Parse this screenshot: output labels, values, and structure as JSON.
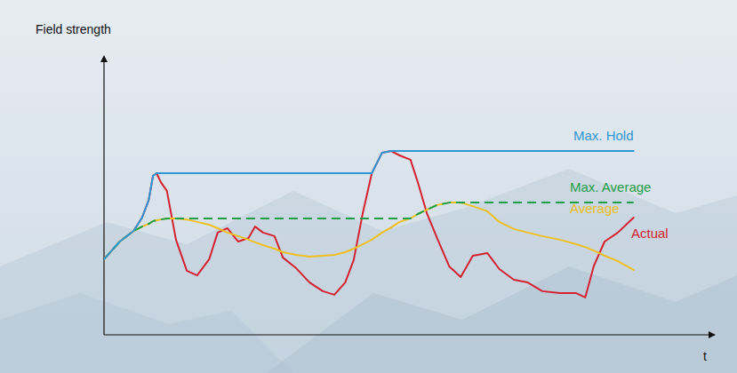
{
  "chart_data": {
    "type": "line",
    "x_label": "t",
    "y_label": "Field strength",
    "tick_labels": false,
    "grid": false,
    "xlim": [
      0,
      100
    ],
    "ylim": [
      0,
      100
    ],
    "x": [
      0,
      2.6,
      4.9,
      6.3,
      7.4,
      8.1,
      8.7,
      9.4,
      10.4,
      11.9,
      13.7,
      15.4,
      17.4,
      18.8,
      20.4,
      22.2,
      23.9,
      25.0,
      26.3,
      28.2,
      29.6,
      31.8,
      34.0,
      36.2,
      38.1,
      39.9,
      41.3,
      42.8,
      44.3,
      46.0,
      47.5,
      48.9,
      50.7,
      51.9,
      53.4,
      55.1,
      57.1,
      59.0,
      61.0,
      63.4,
      65.4,
      67.8,
      70.1,
      72.5,
      75.4,
      78.1,
      79.6,
      81.0,
      82.8,
      85.0,
      87.6
    ],
    "series": [
      {
        "name": "Actual",
        "color": "#d42230",
        "line_style": "solid",
        "values": [
          27.7,
          34.2,
          38.1,
          43.0,
          49.5,
          58.3,
          59.3,
          56.0,
          52.8,
          34.9,
          23.5,
          21.8,
          27.7,
          37.5,
          39.1,
          34.2,
          35.5,
          39.7,
          37.5,
          36.2,
          28.3,
          24.4,
          19.2,
          16.0,
          14.7,
          19.2,
          27.4,
          44.6,
          59.3,
          66.8,
          67.4,
          65.8,
          64.2,
          56.0,
          44.6,
          35.5,
          25.1,
          21.2,
          29.0,
          30.0,
          24.1,
          20.2,
          19.2,
          16.0,
          15.3,
          15.3,
          13.7,
          25.1,
          34.2,
          37.5,
          43.0
        ]
      },
      {
        "name": "Average",
        "color": "#f0c020",
        "line_style": "solid",
        "values": [
          27.7,
          34.2,
          38.1,
          39.7,
          40.7,
          41.7,
          42.0,
          42.3,
          42.7,
          42.7,
          42.3,
          41.4,
          40.4,
          39.1,
          37.5,
          36.2,
          34.9,
          33.9,
          32.9,
          31.6,
          30.3,
          29.3,
          28.7,
          29.0,
          29.3,
          30.3,
          31.6,
          33.2,
          34.9,
          37.5,
          39.4,
          41.4,
          42.7,
          44.3,
          45.9,
          47.6,
          48.5,
          48.5,
          47.2,
          45.3,
          41.4,
          38.8,
          37.5,
          36.2,
          34.9,
          33.2,
          32.2,
          30.9,
          29.0,
          27.0,
          23.8
        ]
      },
      {
        "name": "Max. Average",
        "color": "#1e9e48",
        "line_style": "dashed",
        "values": [
          27.7,
          34.2,
          38.1,
          39.7,
          40.7,
          41.7,
          42.0,
          42.3,
          42.7,
          42.7,
          42.7,
          42.7,
          42.7,
          42.7,
          42.7,
          42.7,
          42.7,
          42.7,
          42.7,
          42.7,
          42.7,
          42.7,
          42.7,
          42.7,
          42.7,
          42.7,
          42.7,
          42.7,
          42.7,
          42.7,
          42.7,
          42.7,
          42.7,
          44.3,
          45.9,
          47.6,
          48.5,
          48.5,
          48.5,
          48.5,
          48.5,
          48.5,
          48.5,
          48.5,
          48.5,
          48.5,
          48.5,
          48.5,
          48.5,
          48.5,
          48.5
        ]
      },
      {
        "name": "Max. Hold",
        "color": "#2e98d6",
        "line_style": "solid",
        "values": [
          27.7,
          34.2,
          38.1,
          43.0,
          49.5,
          58.3,
          59.3,
          59.3,
          59.3,
          59.3,
          59.3,
          59.3,
          59.3,
          59.3,
          59.3,
          59.3,
          59.3,
          59.3,
          59.3,
          59.3,
          59.3,
          59.3,
          59.3,
          59.3,
          59.3,
          59.3,
          59.3,
          59.3,
          59.3,
          66.8,
          67.4,
          67.4,
          67.4,
          67.4,
          67.4,
          67.4,
          67.4,
          67.4,
          67.4,
          67.4,
          67.4,
          67.4,
          67.4,
          67.4,
          67.4,
          67.4,
          67.4,
          67.4,
          67.4,
          67.4,
          67.4
        ]
      }
    ]
  }
}
